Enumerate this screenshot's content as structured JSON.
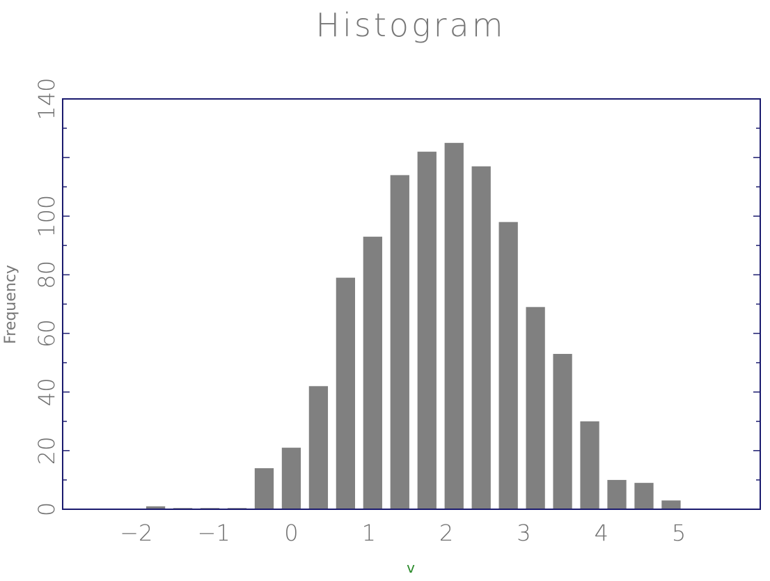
{
  "chart_data": {
    "type": "bar",
    "title": "Histogram",
    "xlabel": "v",
    "ylabel": "Frequency",
    "xlim": [
      -2.95,
      6.05
    ],
    "ylim": [
      0,
      140
    ],
    "x_ticks": [
      "−2",
      "−1",
      "0",
      "1",
      "2",
      "3",
      "4",
      "5"
    ],
    "x_tick_values": [
      -2,
      -1,
      0,
      1,
      2,
      3,
      4,
      5
    ],
    "y_ticks": [
      "0",
      "20",
      "40",
      "60",
      "80",
      "100",
      "140"
    ],
    "y_tick_values": [
      0,
      20,
      40,
      60,
      80,
      100,
      140
    ],
    "bins": [
      {
        "x": -1.75,
        "count": 1
      },
      {
        "x": -1.4,
        "count": 0.4
      },
      {
        "x": -1.05,
        "count": 0.4
      },
      {
        "x": -0.7,
        "count": 0.4
      },
      {
        "x": -0.35,
        "count": 14
      },
      {
        "x": 0.0,
        "count": 21
      },
      {
        "x": 0.35,
        "count": 42
      },
      {
        "x": 0.7,
        "count": 79
      },
      {
        "x": 1.05,
        "count": 93
      },
      {
        "x": 1.4,
        "count": 114
      },
      {
        "x": 1.75,
        "count": 122
      },
      {
        "x": 2.1,
        "count": 125
      },
      {
        "x": 2.45,
        "count": 117
      },
      {
        "x": 2.8,
        "count": 98
      },
      {
        "x": 3.15,
        "count": 69
      },
      {
        "x": 3.5,
        "count": 53
      },
      {
        "x": 3.85,
        "count": 30
      },
      {
        "x": 4.2,
        "count": 10
      },
      {
        "x": 4.55,
        "count": 9
      },
      {
        "x": 4.9,
        "count": 3
      }
    ],
    "bin_width": 0.35,
    "bar_color": "#808080",
    "frame_color": "#1a1a6e",
    "grid": false,
    "legend": "none"
  }
}
